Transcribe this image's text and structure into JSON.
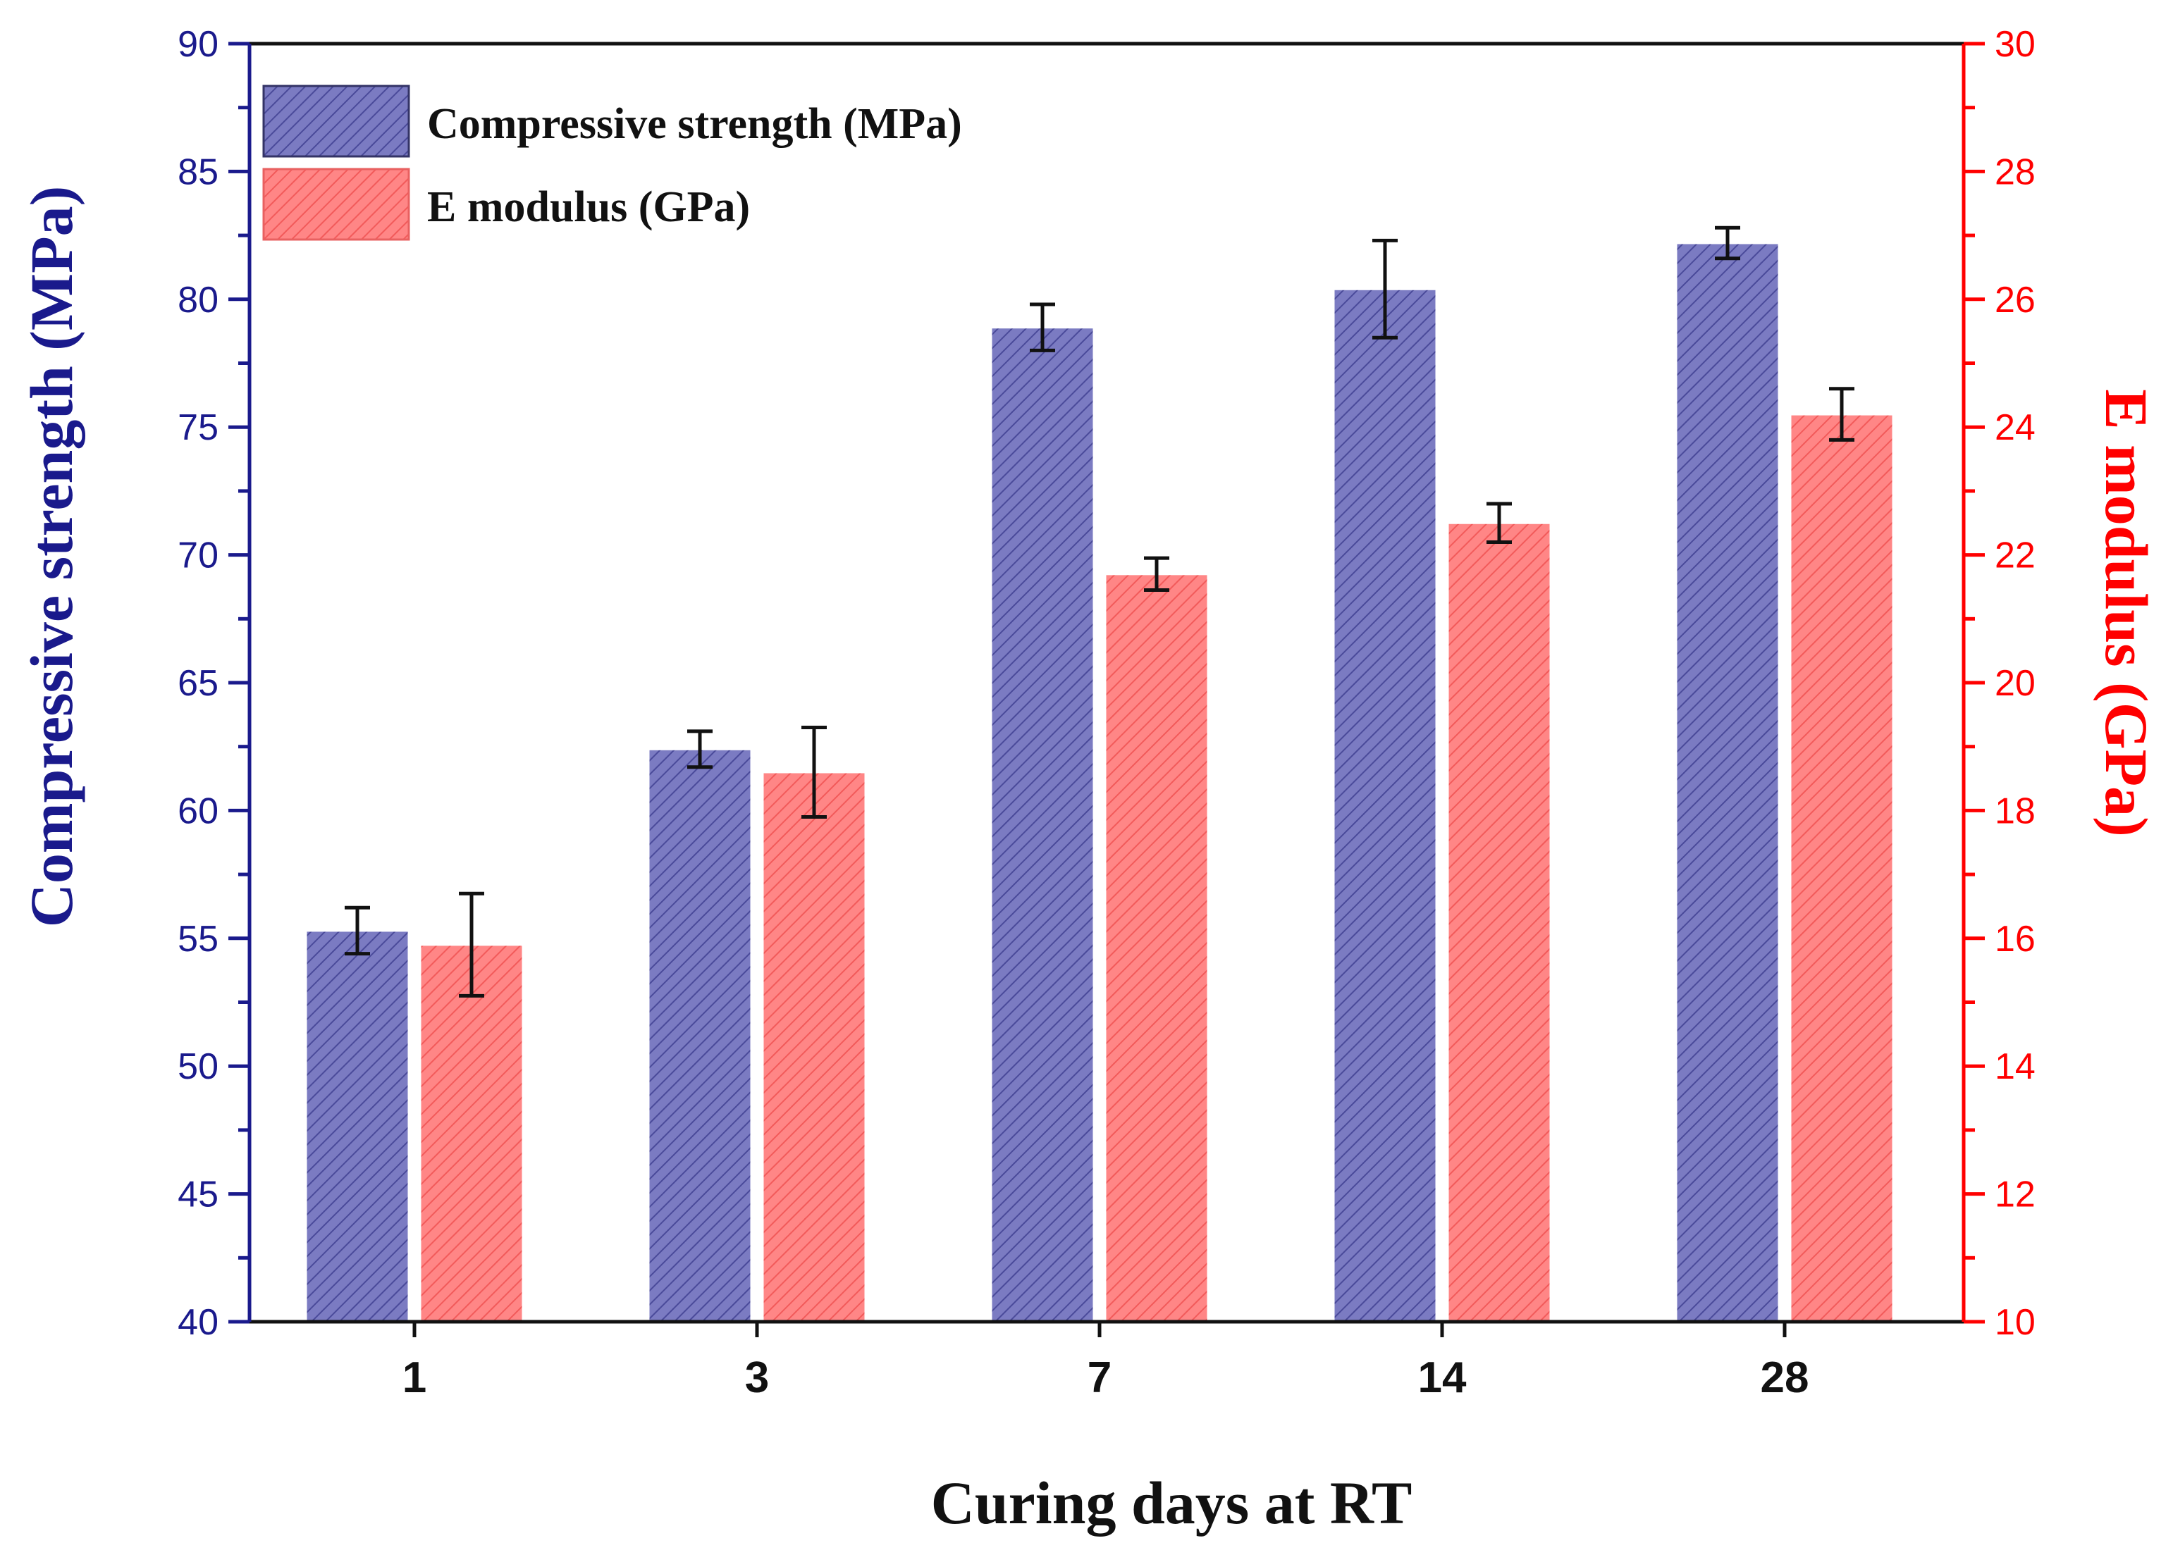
{
  "chart_data": {
    "type": "bar",
    "categories": [
      "1",
      "3",
      "7",
      "14",
      "28"
    ],
    "xlabel": "Curing days at RT",
    "ylabel": "Compressive strength (MPa)",
    "ylabel_right": "E modulus (GPa)",
    "ylim": [
      40,
      90
    ],
    "ylim_right": [
      10,
      30
    ],
    "yticks": [
      40,
      45,
      50,
      55,
      60,
      65,
      70,
      75,
      80,
      85,
      90
    ],
    "yticks_right": [
      10,
      12,
      14,
      16,
      18,
      20,
      22,
      24,
      26,
      28,
      30
    ],
    "legend_position": "top-left",
    "grid": false,
    "series": [
      {
        "name": "Compressive strength (MPa)",
        "axis": "left",
        "color": "#7b7bc2",
        "edge_color": "#3a3a8a",
        "values": [
          55.3,
          62.4,
          78.9,
          80.4,
          82.2
        ],
        "errors": [
          0.9,
          0.7,
          0.9,
          1.9,
          0.6
        ]
      },
      {
        "name": "E modulus (GPa)",
        "axis": "right",
        "color": "#ff8080",
        "edge_color": "#e03a3a",
        "values": [
          15.9,
          18.6,
          21.7,
          22.5,
          24.2
        ],
        "errors": [
          0.8,
          0.7,
          0.25,
          0.3,
          0.4
        ]
      }
    ],
    "colors": {
      "left_axis": "#1a1a8c",
      "right_axis": "#ff0000",
      "frame": "#111111"
    }
  }
}
